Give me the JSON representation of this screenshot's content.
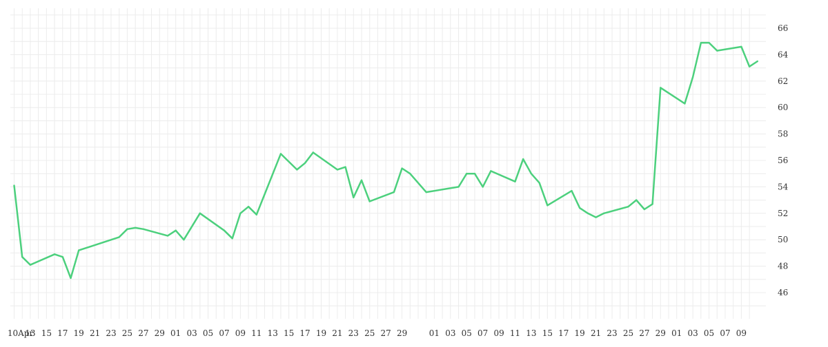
{
  "chart_data": {
    "type": "line",
    "x_tick_labels": [
      "10Apr",
      "13",
      "15",
      "17",
      "19",
      "21",
      "23",
      "25",
      "27",
      "29",
      "01",
      "03",
      "05",
      "07",
      "09",
      "11",
      "13",
      "15",
      "17",
      "19",
      "21",
      "23",
      "25",
      "27",
      "29",
      "",
      "01",
      "03",
      "05",
      "07",
      "09",
      "11",
      "13",
      "15",
      "17",
      "19",
      "21",
      "23",
      "25",
      "27",
      "29",
      "01",
      "03",
      "05",
      "07",
      "09"
    ],
    "y_ticks": [
      46,
      48,
      50,
      52,
      54,
      56,
      58,
      60,
      62,
      64,
      66
    ],
    "ylim": [
      44,
      67
    ],
    "grid": true,
    "y_axis_position": "right",
    "colors": {
      "line": "#4cd07d",
      "grid": "#ececec"
    },
    "series": [
      {
        "values": [
          54.1,
          48.7,
          48.1,
          48.9,
          48.7,
          47.1,
          49.2,
          50.2,
          50.8,
          50.9,
          50.8,
          50.3,
          50.7,
          50.0,
          52.0,
          50.7,
          50.1,
          52.0,
          52.5,
          51.9,
          56.5,
          55.3,
          55.8,
          56.6,
          55.3,
          55.5,
          53.2,
          54.5,
          52.9,
          53.6,
          55.4,
          55.0,
          53.6,
          54.0,
          55.0,
          55.0,
          54.0,
          55.2,
          54.4,
          56.1,
          55.0,
          54.3,
          52.6,
          53.7,
          52.4,
          52.0,
          51.7,
          52.0,
          52.5,
          53.0,
          52.3,
          52.7,
          61.5,
          60.3,
          62.3,
          64.9,
          64.9,
          64.3,
          64.6,
          63.1,
          63.5
        ],
        "x_index": [
          0,
          1,
          2,
          5,
          6,
          7,
          8,
          13,
          14,
          15,
          16,
          19,
          20,
          21,
          23,
          26,
          27,
          28,
          29,
          30,
          33,
          35,
          36,
          37,
          40,
          41,
          42,
          43,
          44,
          47,
          48,
          49,
          51,
          55,
          56,
          57,
          58,
          59,
          62,
          63,
          64,
          65,
          66,
          69,
          70,
          71,
          72,
          73,
          76,
          77,
          78,
          79,
          80,
          83,
          84,
          85,
          86,
          87,
          90,
          91,
          92
        ]
      }
    ]
  }
}
